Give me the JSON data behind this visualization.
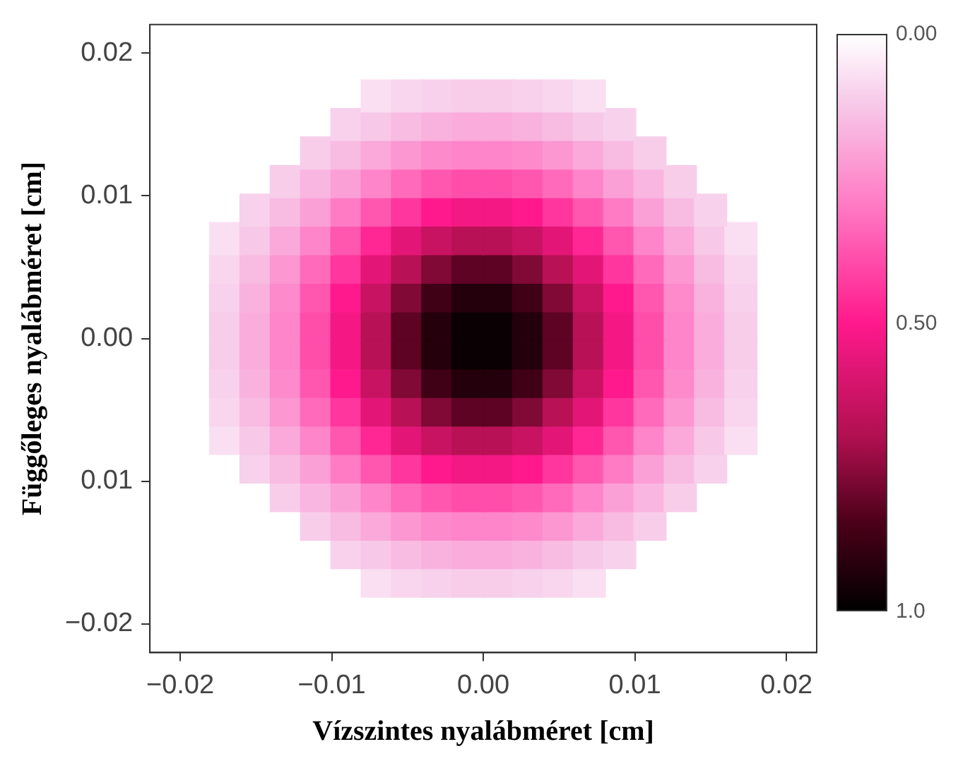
{
  "chart_data": {
    "type": "scatter",
    "xlabel": "Vízszintes nyalábméret [cm]",
    "ylabel": "Függőleges nyalábméret [cm]",
    "marker": "square",
    "xlim": [
      -0.022,
      0.022
    ],
    "ylim": [
      -0.022,
      0.022
    ],
    "xticks": [
      {
        "value": -0.02,
        "label": "−0.02"
      },
      {
        "value": -0.01,
        "label": "−0.01"
      },
      {
        "value": 0,
        "label": "0.00"
      },
      {
        "value": 0.01,
        "label": "0.01"
      },
      {
        "value": 0.02,
        "label": "0.02"
      }
    ],
    "yticks": [
      {
        "value": -0.02,
        "label": "−0.02"
      },
      {
        "value": -0.01,
        "label": "0.01"
      },
      {
        "value": 0,
        "label": "0.00"
      },
      {
        "value": 0.01,
        "label": "0.01"
      },
      {
        "value": 0.02,
        "label": "0.02"
      }
    ],
    "clim": [
      0,
      1
    ],
    "cticks": [
      {
        "value": 0,
        "label": "0.00"
      },
      {
        "value": 0.5,
        "label": "0.50"
      },
      {
        "value": 1,
        "label": "1.0"
      }
    ],
    "series": [
      {
        "x": [
          -0.007,
          -0.005,
          -0.003,
          -0.001,
          0.001,
          0.003,
          0.005,
          0.007
        ],
        "values": [
          0.017,
          0.017,
          0.017,
          0.017,
          0.017,
          0.017,
          0.017,
          0.017
        ],
        "cvalues": [
          0.07,
          0.09,
          0.1,
          0.11,
          0.11,
          0.1,
          0.09,
          0.07
        ],
        "colors": [
          "#fadff2",
          "#f9d6ee",
          "#f8d1ec",
          "#f8cdea",
          "#f8cdea",
          "#f8d1ec",
          "#f9d6ee",
          "#fadff2"
        ]
      },
      {
        "x": [
          -0.009,
          -0.007,
          -0.005,
          -0.003,
          -0.001,
          0.001,
          0.003,
          0.005,
          0.007,
          0.009
        ],
        "values": [
          0.015,
          0.015,
          0.015,
          0.015,
          0.015,
          0.015,
          0.015,
          0.015,
          0.015,
          0.015
        ],
        "cvalues": [
          0.1,
          0.12,
          0.15,
          0.17,
          0.18,
          0.18,
          0.17,
          0.15,
          0.12,
          0.1
        ],
        "colors": [
          "#f8d1ec",
          "#f7c8e8",
          "#f8bbe2",
          "#f9b2de",
          "#faaddc",
          "#faaddc",
          "#f9b2de",
          "#f8bbe2",
          "#f7c8e8",
          "#f8d1ec"
        ]
      },
      {
        "x": [
          -0.011,
          -0.009,
          -0.007,
          -0.005,
          -0.003,
          -0.001,
          0.001,
          0.003,
          0.005,
          0.007,
          0.009,
          0.011
        ],
        "values": [
          0.013,
          0.013,
          0.013,
          0.013,
          0.013,
          0.013,
          0.013,
          0.013,
          0.013,
          0.013,
          0.013,
          0.013
        ],
        "cvalues": [
          0.11,
          0.15,
          0.19,
          0.23,
          0.26,
          0.27,
          0.27,
          0.26,
          0.23,
          0.19,
          0.15,
          0.11
        ],
        "colors": [
          "#f8cdea",
          "#f8bbe2",
          "#faa9da",
          "#fc97d1",
          "#fd8acb",
          "#fe85c9",
          "#fe85c9",
          "#fd8acb",
          "#fc97d1",
          "#faa9da",
          "#f8bbe2",
          "#f8cdea"
        ]
      },
      {
        "x": [
          -0.013,
          -0.011,
          -0.009,
          -0.007,
          -0.005,
          -0.003,
          -0.001,
          0.001,
          0.003,
          0.005,
          0.007,
          0.009,
          0.011,
          0.013
        ],
        "values": [
          0.011,
          0.011,
          0.011,
          0.011,
          0.011,
          0.011,
          0.011,
          0.011,
          0.011,
          0.011,
          0.011,
          0.011,
          0.011,
          0.011
        ],
        "cvalues": [
          0.11,
          0.16,
          0.21,
          0.27,
          0.33,
          0.37,
          0.39,
          0.39,
          0.37,
          0.33,
          0.27,
          0.21,
          0.16,
          0.11
        ],
        "colors": [
          "#f8cdea",
          "#f9b6e0",
          "#fba0d6",
          "#fe85c9",
          "#ff6abb",
          "#ff57b0",
          "#ff4daa",
          "#ff4daa",
          "#ff57b0",
          "#ff6abb",
          "#fe85c9",
          "#fba0d6",
          "#f9b6e0",
          "#f8cdea"
        ]
      },
      {
        "x": [
          -0.015,
          -0.013,
          -0.011,
          -0.009,
          -0.007,
          -0.005,
          -0.003,
          -0.001,
          0.001,
          0.003,
          0.005,
          0.007,
          0.009,
          0.011,
          0.013,
          0.015
        ],
        "values": [
          0.009,
          0.009,
          0.009,
          0.009,
          0.009,
          0.009,
          0.009,
          0.009,
          0.009,
          0.009,
          0.009,
          0.009,
          0.009,
          0.009,
          0.009,
          0.009
        ],
        "cvalues": [
          0.1,
          0.15,
          0.21,
          0.29,
          0.37,
          0.44,
          0.5,
          0.53,
          0.53,
          0.5,
          0.44,
          0.37,
          0.29,
          0.21,
          0.15,
          0.1
        ],
        "colors": [
          "#f8d1ec",
          "#f8bbe2",
          "#fba0d6",
          "#ff7cc5",
          "#ff57b0",
          "#ff369d",
          "#ff198c",
          "#f31883",
          "#f31883",
          "#ff198c",
          "#ff369d",
          "#ff57b0",
          "#ff7cc5",
          "#fba0d6",
          "#f8bbe2",
          "#f8d1ec"
        ]
      },
      {
        "x": [
          -0.017,
          -0.015,
          -0.013,
          -0.011,
          -0.009,
          -0.007,
          -0.005,
          -0.003,
          -0.001,
          0.001,
          0.003,
          0.005,
          0.007,
          0.009,
          0.011,
          0.013,
          0.015,
          0.017
        ],
        "values": [
          0.007,
          0.007,
          0.007,
          0.007,
          0.007,
          0.007,
          0.007,
          0.007,
          0.007,
          0.007,
          0.007,
          0.007,
          0.007,
          0.007,
          0.007,
          0.007,
          0.007,
          0.007
        ],
        "cvalues": [
          0.07,
          0.12,
          0.19,
          0.27,
          0.37,
          0.47,
          0.57,
          0.64,
          0.68,
          0.68,
          0.64,
          0.57,
          0.47,
          0.37,
          0.27,
          0.19,
          0.12,
          0.07
        ],
        "colors": [
          "#fadff2",
          "#f7c8e8",
          "#faa9da",
          "#fe85c9",
          "#ff57b0",
          "#ff2794",
          "#e31677",
          "#c81362",
          "#b81156",
          "#b81156",
          "#c81362",
          "#e31677",
          "#ff2794",
          "#ff57b0",
          "#fe85c9",
          "#faa9da",
          "#f7c8e8",
          "#fadff2"
        ]
      },
      {
        "x": [
          -0.017,
          -0.015,
          -0.013,
          -0.011,
          -0.009,
          -0.007,
          -0.005,
          -0.003,
          -0.001,
          0.001,
          0.003,
          0.005,
          0.007,
          0.009,
          0.011,
          0.013,
          0.015,
          0.017
        ],
        "values": [
          0.005,
          0.005,
          0.005,
          0.005,
          0.005,
          0.005,
          0.005,
          0.005,
          0.005,
          0.005,
          0.005,
          0.005,
          0.005,
          0.005,
          0.005,
          0.005,
          0.005,
          0.005
        ],
        "cvalues": [
          0.09,
          0.15,
          0.23,
          0.33,
          0.44,
          0.57,
          0.68,
          0.77,
          0.82,
          0.82,
          0.77,
          0.68,
          0.57,
          0.44,
          0.33,
          0.23,
          0.15,
          0.09
        ],
        "colors": [
          "#f9d6ee",
          "#f8bbe2",
          "#fc97d1",
          "#ff6abb",
          "#ff369d",
          "#e31677",
          "#b81156",
          "#800936",
          "#5e0323",
          "#5e0323",
          "#800936",
          "#b81156",
          "#e31677",
          "#ff369d",
          "#ff6abb",
          "#fc97d1",
          "#f8bbe2",
          "#f9d6ee"
        ]
      },
      {
        "x": [
          -0.017,
          -0.015,
          -0.013,
          -0.011,
          -0.009,
          -0.007,
          -0.005,
          -0.003,
          -0.001,
          0.001,
          0.003,
          0.005,
          0.007,
          0.009,
          0.011,
          0.013,
          0.015,
          0.017
        ],
        "values": [
          0.003,
          0.003,
          0.003,
          0.003,
          0.003,
          0.003,
          0.003,
          0.003,
          0.003,
          0.003,
          0.003,
          0.003,
          0.003,
          0.003,
          0.003,
          0.003,
          0.003,
          0.003
        ],
        "cvalues": [
          0.1,
          0.17,
          0.26,
          0.37,
          0.5,
          0.64,
          0.77,
          0.87,
          0.93,
          0.93,
          0.87,
          0.77,
          0.64,
          0.5,
          0.37,
          0.26,
          0.17,
          0.1
        ],
        "colors": [
          "#f8d1ec",
          "#f9b2de",
          "#fd8acb",
          "#ff57b0",
          "#ff198c",
          "#c81362",
          "#800936",
          "#400015",
          "#23000b",
          "#23000b",
          "#400015",
          "#800936",
          "#c81362",
          "#ff198c",
          "#ff57b0",
          "#fd8acb",
          "#f9b2de",
          "#f8d1ec"
        ]
      },
      {
        "x": [
          -0.017,
          -0.015,
          -0.013,
          -0.011,
          -0.009,
          -0.007,
          -0.005,
          -0.003,
          -0.001,
          0.001,
          0.003,
          0.005,
          0.007,
          0.009,
          0.011,
          0.013,
          0.015,
          0.017
        ],
        "values": [
          0.001,
          0.001,
          0.001,
          0.001,
          0.001,
          0.001,
          0.001,
          0.001,
          0.001,
          0.001,
          0.001,
          0.001,
          0.001,
          0.001,
          0.001,
          0.001,
          0.001,
          0.001
        ],
        "cvalues": [
          0.11,
          0.18,
          0.27,
          0.39,
          0.53,
          0.68,
          0.82,
          0.93,
          0.98,
          0.98,
          0.93,
          0.82,
          0.68,
          0.53,
          0.39,
          0.27,
          0.18,
          0.11
        ],
        "colors": [
          "#f8cdea",
          "#faaddc",
          "#fe85c9",
          "#ff4daa",
          "#f31883",
          "#b81156",
          "#5e0323",
          "#23000b",
          "#0a0003",
          "#0a0003",
          "#23000b",
          "#5e0323",
          "#b81156",
          "#f31883",
          "#ff4daa",
          "#fe85c9",
          "#faaddc",
          "#f8cdea"
        ]
      },
      {
        "x": [
          -0.017,
          -0.015,
          -0.013,
          -0.011,
          -0.009,
          -0.007,
          -0.005,
          -0.003,
          -0.001,
          0.001,
          0.003,
          0.005,
          0.007,
          0.009,
          0.011,
          0.013,
          0.015,
          0.017
        ],
        "values": [
          -0.001,
          -0.001,
          -0.001,
          -0.001,
          -0.001,
          -0.001,
          -0.001,
          -0.001,
          -0.001,
          -0.001,
          -0.001,
          -0.001,
          -0.001,
          -0.001,
          -0.001,
          -0.001,
          -0.001,
          -0.001
        ],
        "cvalues": [
          0.11,
          0.18,
          0.27,
          0.39,
          0.53,
          0.68,
          0.82,
          0.93,
          0.98,
          0.98,
          0.93,
          0.82,
          0.68,
          0.53,
          0.39,
          0.27,
          0.18,
          0.11
        ],
        "colors": [
          "#f8cdea",
          "#faaddc",
          "#fe85c9",
          "#ff4daa",
          "#f31883",
          "#b81156",
          "#5e0323",
          "#23000b",
          "#0a0003",
          "#0a0003",
          "#23000b",
          "#5e0323",
          "#b81156",
          "#f31883",
          "#ff4daa",
          "#fe85c9",
          "#faaddc",
          "#f8cdea"
        ]
      },
      {
        "x": [
          -0.017,
          -0.015,
          -0.013,
          -0.011,
          -0.009,
          -0.007,
          -0.005,
          -0.003,
          -0.001,
          0.001,
          0.003,
          0.005,
          0.007,
          0.009,
          0.011,
          0.013,
          0.015,
          0.017
        ],
        "values": [
          -0.003,
          -0.003,
          -0.003,
          -0.003,
          -0.003,
          -0.003,
          -0.003,
          -0.003,
          -0.003,
          -0.003,
          -0.003,
          -0.003,
          -0.003,
          -0.003,
          -0.003,
          -0.003,
          -0.003,
          -0.003
        ],
        "cvalues": [
          0.1,
          0.17,
          0.26,
          0.37,
          0.5,
          0.64,
          0.77,
          0.87,
          0.93,
          0.93,
          0.87,
          0.77,
          0.64,
          0.5,
          0.37,
          0.26,
          0.17,
          0.1
        ],
        "colors": [
          "#f8d1ec",
          "#f9b2de",
          "#fd8acb",
          "#ff57b0",
          "#ff198c",
          "#c81362",
          "#800936",
          "#400015",
          "#23000b",
          "#23000b",
          "#400015",
          "#800936",
          "#c81362",
          "#ff198c",
          "#ff57b0",
          "#fd8acb",
          "#f9b2de",
          "#f8d1ec"
        ]
      },
      {
        "x": [
          -0.017,
          -0.015,
          -0.013,
          -0.011,
          -0.009,
          -0.007,
          -0.005,
          -0.003,
          -0.001,
          0.001,
          0.003,
          0.005,
          0.007,
          0.009,
          0.011,
          0.013,
          0.015,
          0.017
        ],
        "values": [
          -0.005,
          -0.005,
          -0.005,
          -0.005,
          -0.005,
          -0.005,
          -0.005,
          -0.005,
          -0.005,
          -0.005,
          -0.005,
          -0.005,
          -0.005,
          -0.005,
          -0.005,
          -0.005,
          -0.005,
          -0.005
        ],
        "cvalues": [
          0.09,
          0.15,
          0.23,
          0.33,
          0.44,
          0.57,
          0.68,
          0.77,
          0.82,
          0.82,
          0.77,
          0.68,
          0.57,
          0.44,
          0.33,
          0.23,
          0.15,
          0.09
        ],
        "colors": [
          "#f9d6ee",
          "#f8bbe2",
          "#fc97d1",
          "#ff6abb",
          "#ff369d",
          "#e31677",
          "#b81156",
          "#800936",
          "#5e0323",
          "#5e0323",
          "#800936",
          "#b81156",
          "#e31677",
          "#ff369d",
          "#ff6abb",
          "#fc97d1",
          "#f8bbe2",
          "#f9d6ee"
        ]
      },
      {
        "x": [
          -0.017,
          -0.015,
          -0.013,
          -0.011,
          -0.009,
          -0.007,
          -0.005,
          -0.003,
          -0.001,
          0.001,
          0.003,
          0.005,
          0.007,
          0.009,
          0.011,
          0.013,
          0.015,
          0.017
        ],
        "values": [
          -0.007,
          -0.007,
          -0.007,
          -0.007,
          -0.007,
          -0.007,
          -0.007,
          -0.007,
          -0.007,
          -0.007,
          -0.007,
          -0.007,
          -0.007,
          -0.007,
          -0.007,
          -0.007,
          -0.007,
          -0.007
        ],
        "cvalues": [
          0.07,
          0.12,
          0.19,
          0.27,
          0.37,
          0.47,
          0.57,
          0.64,
          0.68,
          0.68,
          0.64,
          0.57,
          0.47,
          0.37,
          0.27,
          0.19,
          0.12,
          0.07
        ],
        "colors": [
          "#fadff2",
          "#f7c8e8",
          "#faa9da",
          "#fe85c9",
          "#ff57b0",
          "#ff2794",
          "#e31677",
          "#c81362",
          "#b81156",
          "#b81156",
          "#c81362",
          "#e31677",
          "#ff2794",
          "#ff57b0",
          "#fe85c9",
          "#faa9da",
          "#f7c8e8",
          "#fadff2"
        ]
      },
      {
        "x": [
          -0.015,
          -0.013,
          -0.011,
          -0.009,
          -0.007,
          -0.005,
          -0.003,
          -0.001,
          0.001,
          0.003,
          0.005,
          0.007,
          0.009,
          0.011,
          0.013,
          0.015
        ],
        "values": [
          -0.009,
          -0.009,
          -0.009,
          -0.009,
          -0.009,
          -0.009,
          -0.009,
          -0.009,
          -0.009,
          -0.009,
          -0.009,
          -0.009,
          -0.009,
          -0.009,
          -0.009,
          -0.009
        ],
        "cvalues": [
          0.1,
          0.15,
          0.21,
          0.29,
          0.37,
          0.44,
          0.5,
          0.53,
          0.53,
          0.5,
          0.44,
          0.37,
          0.29,
          0.21,
          0.15,
          0.1
        ],
        "colors": [
          "#f8d1ec",
          "#f8bbe2",
          "#fba0d6",
          "#ff7cc5",
          "#ff57b0",
          "#ff369d",
          "#ff198c",
          "#f31883",
          "#f31883",
          "#ff198c",
          "#ff369d",
          "#ff57b0",
          "#ff7cc5",
          "#fba0d6",
          "#f8bbe2",
          "#f8d1ec"
        ]
      },
      {
        "x": [
          -0.013,
          -0.011,
          -0.009,
          -0.007,
          -0.005,
          -0.003,
          -0.001,
          0.001,
          0.003,
          0.005,
          0.007,
          0.009,
          0.011,
          0.013
        ],
        "values": [
          -0.011,
          -0.011,
          -0.011,
          -0.011,
          -0.011,
          -0.011,
          -0.011,
          -0.011,
          -0.011,
          -0.011,
          -0.011,
          -0.011,
          -0.011,
          -0.011
        ],
        "cvalues": [
          0.11,
          0.16,
          0.21,
          0.27,
          0.33,
          0.37,
          0.39,
          0.39,
          0.37,
          0.33,
          0.27,
          0.21,
          0.16,
          0.11
        ],
        "colors": [
          "#f8cdea",
          "#f9b6e0",
          "#fba0d6",
          "#fe85c9",
          "#ff6abb",
          "#ff57b0",
          "#ff4daa",
          "#ff4daa",
          "#ff57b0",
          "#ff6abb",
          "#fe85c9",
          "#fba0d6",
          "#f9b6e0",
          "#f8cdea"
        ]
      },
      {
        "x": [
          -0.011,
          -0.009,
          -0.007,
          -0.005,
          -0.003,
          -0.001,
          0.001,
          0.003,
          0.005,
          0.007,
          0.009,
          0.011
        ],
        "values": [
          -0.013,
          -0.013,
          -0.013,
          -0.013,
          -0.013,
          -0.013,
          -0.013,
          -0.013,
          -0.013,
          -0.013,
          -0.013,
          -0.013
        ],
        "cvalues": [
          0.11,
          0.15,
          0.19,
          0.23,
          0.26,
          0.27,
          0.27,
          0.26,
          0.23,
          0.19,
          0.15,
          0.11
        ],
        "colors": [
          "#f8cdea",
          "#f8bbe2",
          "#faa9da",
          "#fc97d1",
          "#fd8acb",
          "#fe85c9",
          "#fe85c9",
          "#fd8acb",
          "#fc97d1",
          "#faa9da",
          "#f8bbe2",
          "#f8cdea"
        ]
      },
      {
        "x": [
          -0.009,
          -0.007,
          -0.005,
          -0.003,
          -0.001,
          0.001,
          0.003,
          0.005,
          0.007,
          0.009
        ],
        "values": [
          -0.015,
          -0.015,
          -0.015,
          -0.015,
          -0.015,
          -0.015,
          -0.015,
          -0.015,
          -0.015,
          -0.015
        ],
        "cvalues": [
          0.1,
          0.12,
          0.15,
          0.17,
          0.18,
          0.18,
          0.17,
          0.15,
          0.12,
          0.1
        ],
        "colors": [
          "#f8d1ec",
          "#f7c8e8",
          "#f8bbe2",
          "#f9b2de",
          "#faaddc",
          "#faaddc",
          "#f9b2de",
          "#f8bbe2",
          "#f7c8e8",
          "#f8d1ec"
        ]
      },
      {
        "x": [
          -0.007,
          -0.005,
          -0.003,
          -0.001,
          0.001,
          0.003,
          0.005,
          0.007
        ],
        "values": [
          -0.017,
          -0.017,
          -0.017,
          -0.017,
          -0.017,
          -0.017,
          -0.017,
          -0.017
        ],
        "cvalues": [
          0.07,
          0.09,
          0.1,
          0.11,
          0.11,
          0.1,
          0.09,
          0.07
        ],
        "colors": [
          "#fadff2",
          "#f9d6ee",
          "#f8d1ec",
          "#f8cdea",
          "#f8cdea",
          "#f8d1ec",
          "#f9d6ee",
          "#fadff2"
        ]
      }
    ]
  }
}
